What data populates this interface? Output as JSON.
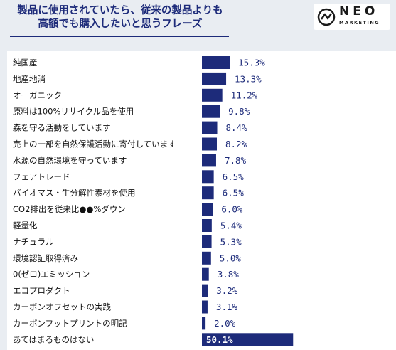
{
  "header": {
    "title_line1": "製品に使用されていたら、従来の製品よりも",
    "title_line2": "高額でも購入したいと思うフレーズ"
  },
  "logo": {
    "name": "NEO",
    "sub": "MARKETING"
  },
  "colors": {
    "bar": "#1d2b7a",
    "value_text": "#1d2b7a",
    "background": "#e9edf2"
  },
  "chart_data": {
    "type": "bar",
    "orientation": "horizontal",
    "title": "製品に使用されていたら、従来の製品よりも高額でも購入したいと思うフレーズ",
    "categories": [
      "純国産",
      "地産地消",
      "オーガニック",
      "原料は100%リサイクル品を使用",
      "森を守る活動をしています",
      "売上の一部を自然保護活動に寄付しています",
      "水源の自然環境を守っています",
      "フェアトレード",
      "バイオマス・生分解性素材を使用",
      "CO2排出を従来比●●%ダウン",
      "軽量化",
      "ナチュラル",
      "環境認証取得済み",
      "0(ゼロ)エミッション",
      "エコプロダクト",
      "カーボンオフセットの実践",
      "カーボンフットプリントの明記",
      "あてはまるものはない"
    ],
    "values": [
      15.3,
      13.3,
      11.2,
      9.8,
      8.4,
      8.2,
      7.8,
      6.5,
      6.5,
      6.0,
      5.4,
      5.3,
      5.0,
      3.8,
      3.2,
      3.1,
      2.0,
      50.1
    ],
    "value_labels": [
      "15.3%",
      "13.3%",
      "11.2%",
      "9.8%",
      "8.4%",
      "8.2%",
      "7.8%",
      "6.5%",
      "6.5%",
      "6.0%",
      "5.4%",
      "5.3%",
      "5.0%",
      "3.8%",
      "3.2%",
      "3.1%",
      "2.0%",
      "50.1%"
    ],
    "unit": "%"
  }
}
